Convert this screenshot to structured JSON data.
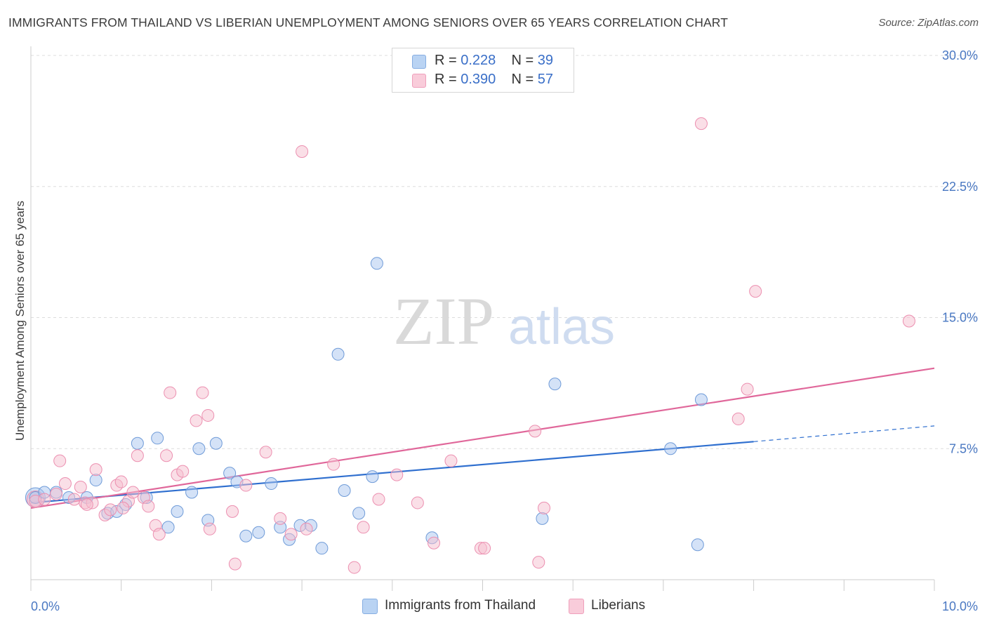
{
  "title": "IMMIGRANTS FROM THAILAND VS LIBERIAN UNEMPLOYMENT AMONG SENIORS OVER 65 YEARS CORRELATION CHART",
  "source": "Source: ZipAtlas.com",
  "watermark": {
    "zip": "ZIP",
    "atlas": "atlas"
  },
  "legend_top": [
    {
      "r_label": "R =",
      "r_value": "0.228",
      "n_label": "N =",
      "n_value": "39"
    },
    {
      "r_label": "R =",
      "r_value": "0.390",
      "n_label": "N =",
      "n_value": "57"
    }
  ],
  "colors": {
    "thailand_fill": "#a9c6ef",
    "thailand_stroke": "#6f9bd8",
    "thailand_line": "#2f6fcf",
    "liberian_fill": "#f6bfd0",
    "liberian_stroke": "#ec8fb0",
    "liberian_line": "#e0679a",
    "tick_label": "#4a78c2",
    "grid": "#dddddd"
  },
  "chart_data": {
    "type": "scatter",
    "xlabel": "",
    "ylabel": "Unemployment Among Seniors over 65 years",
    "xlim": [
      0,
      10
    ],
    "ylim": [
      0,
      30
    ],
    "x_tick_labels": [
      {
        "value": 0,
        "label": "0.0%"
      },
      {
        "value": 10,
        "label": "10.0%"
      }
    ],
    "y_tick_labels": [
      {
        "value": 7.5,
        "label": "7.5%"
      },
      {
        "value": 15,
        "label": "15.0%"
      },
      {
        "value": 22.5,
        "label": "22.5%"
      },
      {
        "value": 30,
        "label": "30.0%"
      }
    ],
    "grid": true,
    "legend_position": "bottom-center",
    "series": [
      {
        "name": "Immigrants from Thailand",
        "r": 0.228,
        "n": 39,
        "trend": {
          "x": [
            0.0,
            8.0
          ],
          "y": [
            4.4,
            7.9
          ],
          "dashed_to": [
            10.0,
            8.8
          ]
        },
        "points": [
          [
            0.05,
            4.7
          ],
          [
            0.15,
            5.0
          ],
          [
            0.28,
            5.0
          ],
          [
            0.42,
            4.7
          ],
          [
            0.62,
            4.7
          ],
          [
            0.72,
            5.7
          ],
          [
            0.85,
            3.8
          ],
          [
            0.95,
            3.9
          ],
          [
            1.05,
            4.3
          ],
          [
            1.18,
            7.8
          ],
          [
            1.28,
            4.7
          ],
          [
            1.4,
            8.1
          ],
          [
            1.52,
            3.0
          ],
          [
            1.62,
            3.9
          ],
          [
            1.78,
            5.0
          ],
          [
            1.86,
            7.5
          ],
          [
            1.96,
            3.4
          ],
          [
            2.05,
            7.8
          ],
          [
            2.2,
            6.1
          ],
          [
            2.28,
            5.6
          ],
          [
            2.38,
            2.5
          ],
          [
            2.52,
            2.7
          ],
          [
            2.66,
            5.5
          ],
          [
            2.76,
            3.0
          ],
          [
            2.86,
            2.3
          ],
          [
            2.98,
            3.1
          ],
          [
            3.1,
            3.1
          ],
          [
            3.22,
            1.8
          ],
          [
            3.4,
            12.9
          ],
          [
            3.47,
            5.1
          ],
          [
            3.63,
            3.8
          ],
          [
            3.78,
            5.9
          ],
          [
            3.83,
            18.1
          ],
          [
            4.44,
            2.4
          ],
          [
            5.8,
            11.2
          ],
          [
            5.66,
            3.5
          ],
          [
            7.08,
            7.5
          ],
          [
            7.42,
            10.3
          ],
          [
            7.38,
            2.0
          ]
        ]
      },
      {
        "name": "Liberians",
        "r": 0.39,
        "n": 57,
        "trend": {
          "x": [
            0.0,
            10.0
          ],
          "y": [
            4.1,
            12.1
          ]
        },
        "points": [
          [
            0.05,
            4.5
          ],
          [
            0.15,
            4.6
          ],
          [
            0.28,
            4.9
          ],
          [
            0.32,
            6.8
          ],
          [
            0.38,
            5.5
          ],
          [
            0.48,
            4.6
          ],
          [
            0.55,
            5.3
          ],
          [
            0.6,
            4.4
          ],
          [
            0.68,
            4.4
          ],
          [
            0.72,
            6.3
          ],
          [
            0.82,
            3.7
          ],
          [
            0.88,
            4.0
          ],
          [
            0.95,
            5.4
          ],
          [
            1.0,
            5.6
          ],
          [
            1.08,
            4.5
          ],
          [
            1.13,
            5.0
          ],
          [
            1.18,
            7.1
          ],
          [
            1.25,
            4.7
          ],
          [
            1.3,
            4.2
          ],
          [
            1.38,
            3.1
          ],
          [
            1.42,
            2.6
          ],
          [
            1.5,
            7.1
          ],
          [
            1.54,
            10.7
          ],
          [
            1.62,
            6.0
          ],
          [
            1.68,
            6.2
          ],
          [
            1.83,
            9.1
          ],
          [
            1.9,
            10.7
          ],
          [
            1.96,
            9.4
          ],
          [
            1.98,
            2.9
          ],
          [
            2.23,
            3.9
          ],
          [
            2.26,
            0.9
          ],
          [
            2.38,
            5.4
          ],
          [
            2.6,
            7.3
          ],
          [
            2.76,
            3.5
          ],
          [
            2.88,
            2.6
          ],
          [
            3.05,
            2.9
          ],
          [
            3.0,
            24.5
          ],
          [
            3.35,
            6.6
          ],
          [
            3.58,
            0.7
          ],
          [
            3.68,
            3.0
          ],
          [
            3.85,
            4.6
          ],
          [
            4.05,
            6.0
          ],
          [
            4.28,
            4.4
          ],
          [
            4.46,
            2.1
          ],
          [
            4.65,
            6.8
          ],
          [
            4.98,
            1.8
          ],
          [
            5.02,
            1.8
          ],
          [
            5.58,
            8.5
          ],
          [
            5.62,
            1.0
          ],
          [
            5.68,
            4.1
          ],
          [
            7.42,
            26.1
          ],
          [
            7.83,
            9.2
          ],
          [
            7.93,
            10.9
          ],
          [
            8.02,
            16.5
          ],
          [
            9.72,
            14.8
          ],
          [
            0.62,
            4.3
          ],
          [
            1.02,
            4.1
          ]
        ]
      }
    ]
  },
  "legend_bottom": [
    "Immigrants from Thailand",
    "Liberians"
  ]
}
